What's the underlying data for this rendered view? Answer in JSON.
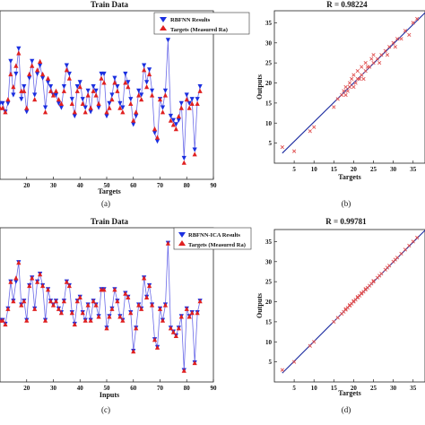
{
  "chart_data": [
    {
      "id": "a",
      "type": "line",
      "caption": "(a)",
      "title": "Train Data",
      "xlabel": "Targets",
      "ylabel": "",
      "xlim": [
        10,
        90
      ],
      "x_ticks": [
        20,
        30,
        40,
        50,
        60,
        70,
        80,
        90
      ],
      "ylim": [
        0,
        40
      ],
      "legend_position": "top-right",
      "series": [
        {
          "name": "RBFNN Results",
          "marker": "triangle-down",
          "color": "#1a2fe0",
          "x": [
            10,
            11,
            12,
            13,
            14,
            15,
            16,
            17,
            18,
            19,
            20,
            21,
            22,
            23,
            24,
            25,
            26,
            27,
            28,
            29,
            30,
            31,
            32,
            33,
            34,
            35,
            36,
            37,
            38,
            39,
            40,
            41,
            42,
            43,
            44,
            45,
            46,
            47,
            48,
            49,
            50,
            51,
            52,
            53,
            54,
            55,
            56,
            57,
            58,
            59,
            60,
            61,
            62,
            63,
            64,
            65,
            66,
            67,
            68,
            69,
            70,
            71,
            72,
            73,
            74,
            75,
            76,
            77,
            78,
            79,
            80,
            81,
            82,
            83,
            84,
            85
          ],
          "y": [
            18,
            18,
            16,
            18,
            28,
            20,
            25,
            31,
            19,
            22,
            16,
            24,
            28,
            20,
            25,
            27,
            24,
            17,
            23,
            22,
            20,
            20,
            18,
            17,
            22,
            27,
            25,
            19,
            15,
            22,
            23,
            19,
            17,
            21,
            16,
            22,
            21,
            17,
            25,
            25,
            15,
            18,
            20,
            24,
            22,
            18,
            17,
            25,
            23,
            19,
            13,
            15,
            21,
            20,
            27,
            23,
            26,
            21,
            11,
            9,
            19,
            17,
            21,
            33,
            15,
            14,
            13,
            14,
            18,
            5,
            20,
            18,
            19,
            7,
            19,
            22
          ]
        },
        {
          "name": "Targets (Measured Ra)",
          "marker": "triangle-up",
          "color": "#e02020",
          "x": [
            10,
            11,
            12,
            13,
            14,
            15,
            16,
            17,
            18,
            19,
            20,
            21,
            22,
            23,
            24,
            25,
            26,
            27,
            28,
            29,
            30,
            31,
            32,
            33,
            34,
            35,
            36,
            37,
            38,
            39,
            40,
            41,
            42,
            43,
            44,
            45,
            46,
            47,
            48,
            49,
            50,
            51,
            52,
            53,
            54,
            55,
            56,
            57,
            58,
            59,
            60,
            61,
            62,
            63,
            64,
            65,
            66,
            67,
            68,
            69,
            70,
            71,
            72,
            73,
            74,
            75,
            76,
            77,
            78,
            79,
            80,
            81,
            82,
            83,
            84,
            85
          ],
          "y": [
            17,
            17,
            16,
            19,
            25,
            22,
            27,
            30,
            21,
            21,
            17,
            25,
            27,
            19,
            26,
            28,
            25,
            16,
            24,
            21,
            20,
            21,
            19,
            18,
            21,
            26,
            24,
            18,
            16,
            21,
            22,
            18,
            16,
            20,
            17,
            21,
            20,
            18,
            24,
            23,
            16,
            17,
            19,
            23,
            21,
            17,
            16,
            23,
            22,
            18,
            14,
            16,
            20,
            19,
            26,
            22,
            25,
            20,
            12,
            10,
            19,
            16,
            20,
            36,
            14,
            13,
            12,
            15,
            17,
            4,
            19,
            17,
            18,
            6,
            18,
            21
          ]
        }
      ]
    },
    {
      "id": "b",
      "type": "scatter",
      "caption": "(b)",
      "title": "R = 0.98224",
      "xlabel": "Targets",
      "ylabel": "Outputs",
      "xlim": [
        0,
        38
      ],
      "ylim": [
        0,
        38
      ],
      "x_ticks": [
        5,
        10,
        15,
        20,
        25,
        30,
        35
      ],
      "y_ticks": [
        5,
        10,
        15,
        20,
        25,
        30,
        35
      ],
      "fit_line": {
        "x": [
          2,
          38
        ],
        "y": [
          2.5,
          37.5
        ],
        "color": "#1a2aa0"
      },
      "points": {
        "color": "#e05050",
        "x": [
          2,
          5,
          9,
          10,
          15,
          16,
          17,
          17.5,
          18,
          18,
          18.5,
          19,
          19,
          19.5,
          20,
          20,
          20.5,
          21,
          21,
          21.5,
          22,
          22,
          22.5,
          23,
          23,
          23.5,
          24,
          24.5,
          25,
          25,
          26,
          26.5,
          27,
          28,
          28.5,
          29,
          30,
          30.5,
          31,
          32,
          33,
          34,
          35,
          36
        ],
        "y": [
          4,
          3,
          8,
          9,
          14,
          16,
          17,
          18,
          17,
          19,
          18,
          20,
          19,
          21,
          19,
          22,
          20,
          21,
          23,
          21,
          22,
          24,
          21,
          23,
          25,
          24,
          24,
          26,
          25,
          27,
          26,
          25,
          27,
          28,
          27,
          29,
          30,
          29,
          31,
          31,
          33,
          32,
          35,
          36
        ]
      }
    },
    {
      "id": "c",
      "type": "line",
      "caption": "(c)",
      "title": "Train Data",
      "xlabel": "Inputs",
      "ylabel": "",
      "xlim": [
        10,
        90
      ],
      "x_ticks": [
        20,
        30,
        40,
        50,
        60,
        70,
        80,
        90
      ],
      "ylim": [
        0,
        40
      ],
      "legend_position": "top-right",
      "series": [
        {
          "name": "RBFNN-ICA Results",
          "marker": "triangle-down",
          "color": "#1a2fe0",
          "x": [
            10,
            11,
            12,
            13,
            14,
            15,
            16,
            17,
            18,
            19,
            20,
            21,
            22,
            23,
            24,
            25,
            26,
            27,
            28,
            29,
            30,
            31,
            32,
            33,
            34,
            35,
            36,
            37,
            38,
            39,
            40,
            41,
            42,
            43,
            44,
            45,
            46,
            47,
            48,
            49,
            50,
            51,
            52,
            53,
            54,
            55,
            56,
            57,
            58,
            59,
            60,
            61,
            62,
            63,
            64,
            65,
            66,
            67,
            68,
            69,
            70,
            71,
            72,
            73,
            74,
            75,
            76,
            77,
            78,
            79,
            80,
            81,
            82,
            83,
            84,
            85
          ],
          "y": [
            16,
            16,
            15,
            19,
            26,
            21,
            26,
            31,
            20,
            21,
            16,
            25,
            27,
            19,
            26,
            28,
            25,
            16,
            24,
            21,
            20,
            21,
            19,
            18,
            21,
            26,
            25,
            18,
            15,
            21,
            22,
            18,
            16,
            20,
            16,
            21,
            20,
            17,
            24,
            24,
            14,
            17,
            19,
            24,
            21,
            17,
            16,
            23,
            22,
            18,
            8,
            14,
            20,
            19,
            27,
            22,
            25,
            20,
            11,
            9,
            19,
            16,
            20,
            36,
            14,
            13,
            12,
            14,
            17,
            3,
            19,
            17,
            18,
            5,
            18,
            21
          ]
        },
        {
          "name": "Targets (Measured Ra)",
          "marker": "triangle-up",
          "color": "#e02020",
          "x": [
            10,
            11,
            12,
            13,
            14,
            15,
            16,
            17,
            18,
            19,
            20,
            21,
            22,
            23,
            24,
            25,
            26,
            27,
            28,
            29,
            30,
            31,
            32,
            33,
            34,
            35,
            36,
            37,
            38,
            39,
            40,
            41,
            42,
            43,
            44,
            45,
            46,
            47,
            48,
            49,
            50,
            51,
            52,
            53,
            54,
            55,
            56,
            57,
            58,
            59,
            60,
            61,
            62,
            63,
            64,
            65,
            66,
            67,
            68,
            69,
            70,
            71,
            72,
            73,
            74,
            75,
            76,
            77,
            78,
            79,
            80,
            81,
            82,
            83,
            84,
            85
          ],
          "y": [
            16,
            16,
            15,
            19,
            26,
            21,
            27,
            31,
            20,
            21,
            16,
            25,
            27,
            19,
            26,
            28,
            25,
            16,
            24,
            21,
            20,
            21,
            19,
            18,
            21,
            26,
            25,
            18,
            15,
            21,
            22,
            18,
            16,
            20,
            16,
            21,
            20,
            17,
            24,
            24,
            14,
            17,
            19,
            24,
            21,
            17,
            16,
            23,
            22,
            18,
            8,
            14,
            20,
            19,
            27,
            22,
            25,
            20,
            11,
            9,
            19,
            16,
            20,
            36,
            14,
            13,
            12,
            14,
            17,
            3,
            19,
            17,
            18,
            5,
            18,
            21
          ]
        }
      ]
    },
    {
      "id": "d",
      "type": "scatter",
      "caption": "(d)",
      "title": "R = 0.99781",
      "xlabel": "Targets",
      "ylabel": "Outputs",
      "xlim": [
        0,
        38
      ],
      "ylim": [
        0,
        38
      ],
      "x_ticks": [
        5,
        10,
        15,
        20,
        25,
        30,
        35
      ],
      "y_ticks": [
        5,
        10,
        15,
        20,
        25,
        30,
        35
      ],
      "fit_line": {
        "x": [
          2,
          38
        ],
        "y": [
          2.2,
          37.8
        ],
        "color": "#1a2aa0"
      },
      "points": {
        "color": "#e05050",
        "x": [
          2,
          5,
          9,
          10,
          15,
          16,
          17,
          17.5,
          18,
          18,
          18.5,
          19,
          19,
          19.5,
          20,
          20,
          20.5,
          21,
          21,
          21.5,
          22,
          22,
          22.5,
          23,
          23,
          23.5,
          24,
          24.5,
          25,
          25,
          26,
          26.5,
          27,
          28,
          28.5,
          29,
          30,
          30.5,
          31,
          32,
          33,
          34,
          35,
          36
        ],
        "y": [
          3,
          5,
          9,
          10,
          15,
          16,
          17,
          17.5,
          18,
          18.2,
          18.5,
          19,
          19.2,
          19.5,
          20,
          20.2,
          20.5,
          21,
          21.2,
          21.5,
          22,
          22.2,
          22.5,
          23,
          23.2,
          23.5,
          24,
          24.5,
          25,
          25.2,
          26,
          26.5,
          27,
          28,
          28.5,
          29,
          30,
          30.5,
          31,
          32,
          33,
          34,
          35,
          36
        ]
      }
    }
  ]
}
